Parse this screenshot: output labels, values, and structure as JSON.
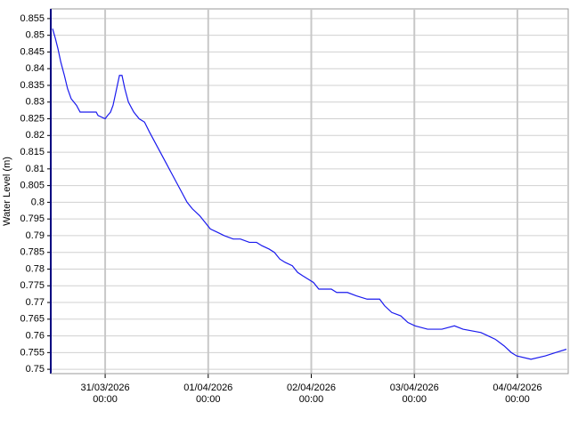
{
  "chart_data": {
    "type": "line",
    "y_label": "Water Level (m)",
    "x": [
      "2026-03-30T11:45",
      "2026-03-30T12:25",
      "2026-03-30T13:00",
      "2026-03-30T13:40",
      "2026-03-30T14:30",
      "2026-03-30T15:15",
      "2026-03-30T16:05",
      "2026-03-30T17:20",
      "2026-03-30T18:10",
      "2026-03-30T19:25",
      "2026-03-30T21:55",
      "2026-03-30T22:20",
      "2026-03-31T00:00",
      "2026-03-31T00:35",
      "2026-03-31T01:15",
      "2026-03-31T01:50",
      "2026-03-31T02:30",
      "2026-03-31T03:20",
      "2026-03-31T03:55",
      "2026-03-31T04:35",
      "2026-03-31T05:25",
      "2026-03-31T06:40",
      "2026-03-31T07:55",
      "2026-03-31T09:10",
      "2026-03-31T10:20",
      "2026-03-31T11:35",
      "2026-03-31T12:50",
      "2026-03-31T14:05",
      "2026-03-31T15:20",
      "2026-03-31T16:35",
      "2026-03-31T17:50",
      "2026-03-31T19:05",
      "2026-03-31T20:20",
      "2026-03-31T22:00",
      "2026-03-31T23:15",
      "2026-04-01T00:30",
      "2026-04-01T02:10",
      "2026-04-01T03:45",
      "2026-04-01T05:50",
      "2026-04-01T07:30",
      "2026-04-01T09:35",
      "2026-04-01T11:15",
      "2026-04-01T12:30",
      "2026-04-01T14:10",
      "2026-04-01T15:25",
      "2026-04-01T16:40",
      "2026-04-01T17:55",
      "2026-04-01T19:35",
      "2026-04-01T20:50",
      "2026-04-01T22:00",
      "2026-04-01T23:15",
      "2026-04-02T00:30",
      "2026-04-02T01:45",
      "2026-04-02T04:40",
      "2026-04-02T05:55",
      "2026-04-02T08:25",
      "2026-04-02T10:30",
      "2026-04-02T13:00",
      "2026-04-02T15:55",
      "2026-04-02T17:05",
      "2026-04-02T18:45",
      "2026-04-02T20:50",
      "2026-04-02T22:30",
      "2026-04-03T00:10",
      "2026-04-03T03:05",
      "2026-04-03T06:25",
      "2026-04-03T09:20",
      "2026-04-03T11:20",
      "2026-04-03T15:30",
      "2026-04-03T17:10",
      "2026-04-03T18:50",
      "2026-04-03T20:55",
      "2026-04-03T22:35",
      "2026-04-03T23:50",
      "2026-04-04T03:10",
      "2026-04-04T06:30",
      "2026-04-04T08:55",
      "2026-04-04T11:25"
    ],
    "series": [
      {
        "color": "#1a1aee",
        "values": [
          0.852,
          0.849,
          0.846,
          0.842,
          0.838,
          0.834,
          0.831,
          0.829,
          0.827,
          0.827,
          0.827,
          0.826,
          0.825,
          0.826,
          0.827,
          0.829,
          0.833,
          0.838,
          0.838,
          0.834,
          0.83,
          0.827,
          0.825,
          0.824,
          0.821,
          0.818,
          0.815,
          0.812,
          0.809,
          0.806,
          0.803,
          0.8,
          0.798,
          0.796,
          0.794,
          0.792,
          0.791,
          0.79,
          0.789,
          0.789,
          0.788,
          0.788,
          0.787,
          0.786,
          0.785,
          0.783,
          0.782,
          0.781,
          0.779,
          0.778,
          0.777,
          0.776,
          0.774,
          0.774,
          0.773,
          0.773,
          0.772,
          0.771,
          0.771,
          0.769,
          0.767,
          0.766,
          0.764,
          0.763,
          0.762,
          0.762,
          0.763,
          0.762,
          0.761,
          0.76,
          0.759,
          0.757,
          0.755,
          0.754,
          0.753,
          0.754,
          0.755,
          0.756
        ]
      }
    ],
    "xlim": [
      "2026-03-30T11:20",
      "2026-04-04T11:50"
    ],
    "xticks": [
      {
        "value": "2026-03-31T00:00",
        "label": "31/03/2026\n00:00"
      },
      {
        "value": "2026-04-01T00:00",
        "label": "01/04/2026\n00:00"
      },
      {
        "value": "2026-04-02T00:00",
        "label": "02/04/2026\n00:00"
      },
      {
        "value": "2026-04-03T00:00",
        "label": "03/04/2026\n00:00"
      },
      {
        "value": "2026-04-04T00:00",
        "label": "04/04/2026\n00:00"
      }
    ],
    "ylim": [
      0.7487,
      0.8579
    ],
    "yticks": [
      0.75,
      0.755,
      0.76,
      0.765,
      0.77,
      0.775,
      0.78,
      0.785,
      0.79,
      0.795,
      0.8,
      0.805,
      0.81,
      0.815,
      0.82,
      0.825,
      0.83,
      0.835,
      0.84,
      0.845,
      0.85,
      0.855
    ],
    "grid": true
  }
}
